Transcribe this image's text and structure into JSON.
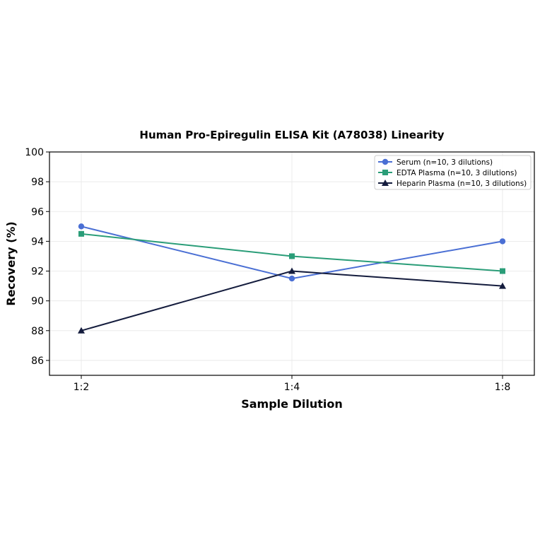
{
  "chart_data": {
    "type": "line",
    "title": "Human Pro-Epiregulin ELISA Kit (A78038) Linearity",
    "xlabel": "Sample Dilution",
    "ylabel": "Recovery (%)",
    "categories": [
      "1:2",
      "1:4",
      "1:8"
    ],
    "ylim": [
      85,
      100
    ],
    "yticks": [
      86,
      88,
      90,
      92,
      94,
      96,
      98,
      100
    ],
    "grid": true,
    "legend_position": "top-right",
    "series": [
      {
        "name": "Serum (n=10, 3 dilutions)",
        "values": [
          95,
          91.5,
          94
        ],
        "color": "#4a6fd4",
        "marker": "circle"
      },
      {
        "name": "EDTA Plasma (n=10, 3 dilutions)",
        "values": [
          94.5,
          93,
          92
        ],
        "color": "#2a9d78",
        "marker": "square"
      },
      {
        "name": "Heparin Plasma (n=10, 3 dilutions)",
        "values": [
          88,
          92,
          91
        ],
        "color": "#141c3d",
        "marker": "triangle"
      }
    ]
  }
}
